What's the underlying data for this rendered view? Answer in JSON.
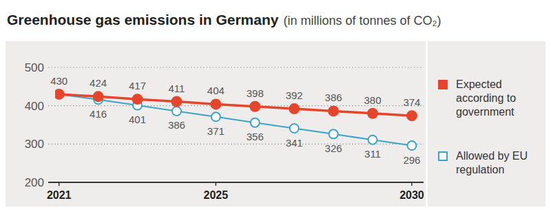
{
  "chart_data": {
    "type": "line",
    "title": "Greenhouse gas emissions in Germany",
    "subtitle": "(in millions of tonnes of CO₂)",
    "x": [
      2021,
      2022,
      2023,
      2024,
      2025,
      2026,
      2027,
      2028,
      2029,
      2030
    ],
    "xlim": [
      2020.9,
      2030.3
    ],
    "xticks": [
      2021,
      2025,
      2030
    ],
    "ylim": [
      200,
      500
    ],
    "yticks": [
      200,
      300,
      400,
      500
    ],
    "grid": true,
    "legend": "right",
    "data_labels": true,
    "series": [
      {
        "name": "Expected according to government",
        "color": "#e5452a",
        "marker": "filled_circle",
        "line_style": "solid",
        "values": [
          430,
          424,
          417,
          411,
          404,
          398,
          392,
          386,
          380,
          374
        ]
      },
      {
        "name": "Allowed by EU regulation",
        "color": "#3ba4c6",
        "marker": "open_circle",
        "line_style": "solid",
        "values": [
          430,
          416,
          401,
          386,
          371,
          356,
          341,
          326,
          311,
          296
        ],
        "value_labels": [
          null,
          "416",
          "401",
          "386",
          "371",
          "356",
          "341",
          "326",
          "311",
          "296"
        ]
      }
    ]
  }
}
